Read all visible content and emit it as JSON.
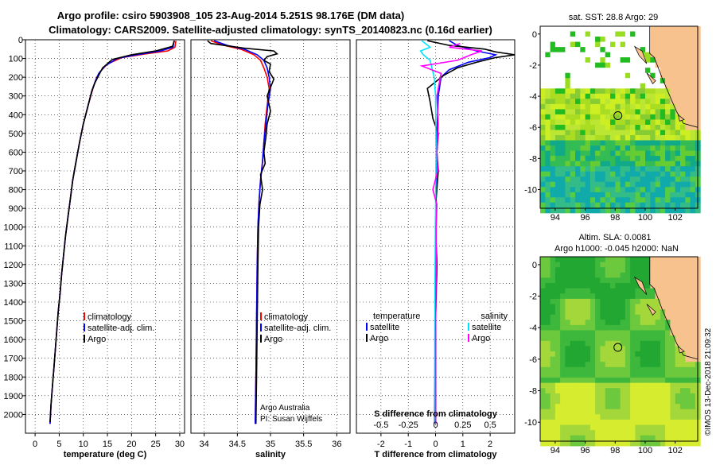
{
  "header": {
    "line1": "Argo profile: csiro 5903908_105 23-Aug-2014 5.251S 98.176E (DM data)",
    "line2": "Climatology: CARS2009. Satellite-adjusted climatology: synTS_20140823.nc (0.16d earlier)"
  },
  "colors": {
    "climatology": "#ff0000",
    "satellite": "#0000ff",
    "argo": "#000000",
    "sat_salinity": "#00e5ff",
    "argo_salinity": "#ff00ff",
    "land": "#f8c28f",
    "missing": "#ffffff"
  },
  "footer": {
    "credit1": "Argo Australia",
    "credit2": "PI: Susan Wijffels",
    "stamp": "©IMOS 13-Dec-2018 21:09:32"
  },
  "chart_data": [
    {
      "id": "temperature",
      "type": "line",
      "xlabel": "temperature (deg C)",
      "xlim": [
        -2,
        31
      ],
      "xticks": [
        0,
        5,
        10,
        15,
        20,
        25,
        30
      ],
      "ylim": [
        2100,
        0
      ],
      "yticks": [
        0,
        100,
        200,
        300,
        400,
        500,
        600,
        700,
        800,
        900,
        1000,
        1100,
        1200,
        1300,
        1400,
        1500,
        1600,
        1700,
        1800,
        1900,
        2000
      ],
      "legend": [
        "climatology",
        "satellite-adj. clim.",
        "Argo"
      ],
      "series": [
        {
          "name": "climatology",
          "color": "#ff0000",
          "points": [
            [
              29.2,
              5
            ],
            [
              29.0,
              40
            ],
            [
              27.5,
              60
            ],
            [
              23,
              75
            ],
            [
              18,
              95
            ],
            [
              15,
              130
            ],
            [
              13.5,
              170
            ],
            [
              12.8,
              200
            ],
            [
              12,
              260
            ],
            [
              11,
              350
            ],
            [
              10,
              450
            ],
            [
              9.2,
              550
            ],
            [
              8.5,
              650
            ],
            [
              7.8,
              750
            ],
            [
              7.3,
              850
            ],
            [
              6.8,
              950
            ],
            [
              6.3,
              1050
            ],
            [
              5.9,
              1150
            ],
            [
              5.5,
              1250
            ],
            [
              5.2,
              1350
            ],
            [
              4.8,
              1450
            ],
            [
              4.5,
              1550
            ],
            [
              4.2,
              1650
            ],
            [
              3.9,
              1750
            ],
            [
              3.6,
              1850
            ],
            [
              3.3,
              1950
            ],
            [
              3.1,
              2050
            ]
          ]
        },
        {
          "name": "satellite-adj. clim.",
          "color": "#0000ff",
          "points": [
            [
              28.8,
              5
            ],
            [
              28.6,
              40
            ],
            [
              26,
              60
            ],
            [
              21,
              80
            ],
            [
              17,
              100
            ],
            [
              14.5,
              140
            ],
            [
              13.2,
              180
            ],
            [
              12.5,
              220
            ],
            [
              11.8,
              270
            ],
            [
              11,
              350
            ],
            [
              10,
              450
            ],
            [
              9.2,
              550
            ],
            [
              8.5,
              650
            ],
            [
              7.8,
              750
            ],
            [
              7.3,
              850
            ],
            [
              6.8,
              950
            ],
            [
              6.3,
              1050
            ],
            [
              5.9,
              1150
            ],
            [
              5.5,
              1250
            ],
            [
              5.2,
              1350
            ],
            [
              4.8,
              1450
            ],
            [
              4.5,
              1550
            ],
            [
              4.2,
              1650
            ],
            [
              3.9,
              1750
            ],
            [
              3.6,
              1850
            ],
            [
              3.3,
              1950
            ],
            [
              3.1,
              2050
            ]
          ]
        },
        {
          "name": "Argo",
          "color": "#000000",
          "points": [
            [
              28.9,
              5
            ],
            [
              28.5,
              35
            ],
            [
              25,
              60
            ],
            [
              20,
              80
            ],
            [
              16,
              105
            ],
            [
              14,
              150
            ],
            [
              13.2,
              190
            ],
            [
              12.4,
              230
            ],
            [
              11.7,
              280
            ],
            [
              11,
              350
            ],
            [
              10,
              450
            ],
            [
              9.2,
              550
            ],
            [
              8.5,
              650
            ],
            [
              7.8,
              750
            ],
            [
              7.3,
              850
            ],
            [
              6.8,
              950
            ],
            [
              6.3,
              1050
            ],
            [
              5.9,
              1150
            ],
            [
              5.5,
              1250
            ],
            [
              5.2,
              1350
            ],
            [
              4.8,
              1450
            ],
            [
              4.5,
              1550
            ],
            [
              4.2,
              1650
            ],
            [
              3.9,
              1750
            ],
            [
              3.6,
              1850
            ],
            [
              3.3,
              1950
            ],
            [
              3.1,
              2040
            ]
          ]
        }
      ]
    },
    {
      "id": "salinity",
      "type": "line",
      "xlabel": "salinity",
      "xlim": [
        33.8,
        36.2
      ],
      "xticks": [
        34,
        34.5,
        35,
        35.5,
        36
      ],
      "ylim": [
        2100,
        0
      ],
      "legend": [
        "climatology",
        "satellite-adj. clim.",
        "Argo"
      ],
      "series": [
        {
          "name": "climatology",
          "color": "#ff0000",
          "points": [
            [
              34.1,
              5
            ],
            [
              34.3,
              30
            ],
            [
              34.55,
              50
            ],
            [
              34.75,
              80
            ],
            [
              34.85,
              110
            ],
            [
              34.9,
              150
            ],
            [
              34.95,
              200
            ],
            [
              34.98,
              260
            ],
            [
              34.95,
              350
            ],
            [
              34.92,
              450
            ],
            [
              34.9,
              550
            ],
            [
              34.88,
              650
            ],
            [
              34.85,
              750
            ],
            [
              34.83,
              850
            ],
            [
              34.81,
              1000
            ],
            [
              34.8,
              1200
            ],
            [
              34.79,
              1500
            ],
            [
              34.78,
              1800
            ],
            [
              34.77,
              2050
            ]
          ]
        },
        {
          "name": "satellite-adj. clim.",
          "color": "#0000ff",
          "points": [
            [
              34.15,
              5
            ],
            [
              34.35,
              30
            ],
            [
              34.6,
              50
            ],
            [
              34.8,
              80
            ],
            [
              34.9,
              110
            ],
            [
              34.95,
              150
            ],
            [
              34.98,
              200
            ],
            [
              35.0,
              260
            ],
            [
              34.96,
              350
            ],
            [
              34.93,
              450
            ],
            [
              34.9,
              550
            ],
            [
              34.88,
              650
            ],
            [
              34.85,
              750
            ],
            [
              34.83,
              850
            ],
            [
              34.81,
              1000
            ],
            [
              34.8,
              1200
            ],
            [
              34.79,
              1500
            ],
            [
              34.78,
              1800
            ],
            [
              34.77,
              2050
            ]
          ]
        },
        {
          "name": "Argo",
          "color": "#000000",
          "points": [
            [
              34.05,
              5
            ],
            [
              34.1,
              20
            ],
            [
              34.6,
              45
            ],
            [
              35.05,
              60
            ],
            [
              35.1,
              75
            ],
            [
              34.95,
              90
            ],
            [
              34.9,
              110
            ],
            [
              35.0,
              130
            ],
            [
              34.98,
              170
            ],
            [
              35.05,
              210
            ],
            [
              34.95,
              300
            ],
            [
              35.0,
              380
            ],
            [
              34.95,
              450
            ],
            [
              34.93,
              520
            ],
            [
              34.9,
              600
            ],
            [
              34.92,
              660
            ],
            [
              34.85,
              720
            ],
            [
              34.88,
              800
            ],
            [
              34.84,
              880
            ],
            [
              34.82,
              1000
            ],
            [
              34.81,
              1200
            ],
            [
              34.8,
              1500
            ],
            [
              34.79,
              1800
            ],
            [
              34.78,
              2050
            ]
          ]
        }
      ]
    },
    {
      "id": "difference",
      "type": "line",
      "xlabel": "T difference from climatology",
      "xlabel2": "S difference from climatology",
      "xlim": [
        -2.9,
        2.9
      ],
      "xticks": [
        -2,
        -1,
        0,
        1,
        2
      ],
      "sticks": [
        "-0.5",
        "-0.25",
        "0",
        "0.25",
        "0.5"
      ],
      "ylim": [
        2100,
        0
      ],
      "legend_left_title": "temperature",
      "legend_right_title": "salinity",
      "legend_left": [
        "satellite",
        "Argo"
      ],
      "legend_right": [
        "satellite",
        "Argo"
      ],
      "series": [
        {
          "name": "T satellite",
          "color": "#0000ff",
          "points": [
            [
              0.5,
              5
            ],
            [
              0.8,
              30
            ],
            [
              1.5,
              60
            ],
            [
              2.2,
              80
            ],
            [
              2.0,
              95
            ],
            [
              1.2,
              120
            ],
            [
              0.5,
              160
            ],
            [
              0.2,
              200
            ],
            [
              0.1,
              300
            ],
            [
              0.05,
              500
            ],
            [
              0.02,
              800
            ],
            [
              0,
              1100
            ],
            [
              0,
              1500
            ],
            [
              0,
              2050
            ]
          ]
        },
        {
          "name": "T Argo",
          "color": "#000000",
          "points": [
            [
              -0.3,
              5
            ],
            [
              0.5,
              30
            ],
            [
              1.8,
              50
            ],
            [
              2.2,
              65
            ],
            [
              2.9,
              80
            ],
            [
              2.2,
              95
            ],
            [
              1.5,
              120
            ],
            [
              0.8,
              150
            ],
            [
              0.3,
              190
            ],
            [
              -0.3,
              260
            ],
            [
              -0.2,
              330
            ],
            [
              -0.1,
              420
            ],
            [
              0.1,
              500
            ],
            [
              0.05,
              600
            ],
            [
              0.1,
              700
            ],
            [
              0.02,
              850
            ],
            [
              0,
              1000
            ],
            [
              0.05,
              1200
            ],
            [
              0,
              1500
            ],
            [
              0,
              2050
            ]
          ]
        },
        {
          "name": "S satellite",
          "color": "#00e5ff",
          "points": [
            [
              -0.5,
              5
            ],
            [
              -0.2,
              40
            ],
            [
              -0.55,
              60
            ],
            [
              -0.45,
              80
            ],
            [
              -0.2,
              110
            ],
            [
              -0.05,
              200
            ],
            [
              0,
              300
            ],
            [
              0.02,
              600
            ],
            [
              0,
              900
            ],
            [
              -0.02,
              1300
            ],
            [
              -0.03,
              1700
            ],
            [
              -0.05,
              2050
            ]
          ]
        },
        {
          "name": "S Argo",
          "color": "#ff00ff",
          "points": [
            [
              0.9,
              20
            ],
            [
              0.5,
              40
            ],
            [
              1.7,
              60
            ],
            [
              1.3,
              80
            ],
            [
              0.8,
              110
            ],
            [
              -0.5,
              140
            ],
            [
              0.2,
              180
            ],
            [
              0.05,
              300
            ],
            [
              0.1,
              450
            ],
            [
              0.05,
              600
            ],
            [
              0.08,
              700
            ],
            [
              -0.1,
              800
            ],
            [
              0.05,
              880
            ],
            [
              0.02,
              1000
            ],
            [
              0.02,
              1200
            ],
            [
              0,
              1600
            ],
            [
              0,
              2050
            ]
          ]
        }
      ]
    },
    {
      "id": "sst-map",
      "type": "heatmap",
      "title": "sat. SST: 28.8 Argo: 29",
      "xlim": [
        93,
        103.5
      ],
      "ylim": [
        -11.2,
        0.5
      ],
      "xticks": [
        94,
        96,
        98,
        100,
        102
      ],
      "yticks": [
        0,
        -2,
        -4,
        -6,
        -8,
        -10
      ],
      "profile_position": [
        98.18,
        -5.25
      ]
    },
    {
      "id": "sla-map",
      "type": "heatmap",
      "title": "Altim. SLA: 0.0081",
      "subtitle": "Argo h1000: -0.045 h2000: NaN",
      "xlim": [
        93,
        103.5
      ],
      "ylim": [
        -11.2,
        0.5
      ],
      "xticks": [
        94,
        96,
        98,
        100,
        102
      ],
      "yticks": [
        0,
        -2,
        -4,
        -6,
        -8,
        -10
      ],
      "profile_position": [
        98.18,
        -5.25
      ]
    }
  ]
}
